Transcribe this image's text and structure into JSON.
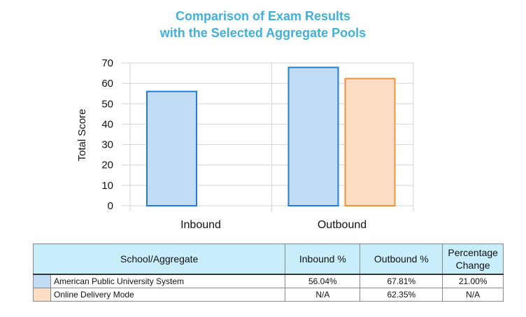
{
  "chart_data": {
    "type": "bar",
    "title_line1": "Comparison of Exam Results",
    "title_line2": "with the Selected Aggregate Pools",
    "ylabel": "Total Score",
    "xlabel": "",
    "ylim": [
      0,
      70
    ],
    "yticks": [
      0,
      10,
      20,
      30,
      40,
      50,
      60,
      70
    ],
    "grid": true,
    "categories": [
      "Inbound",
      "Outbound"
    ],
    "series": [
      {
        "name": "American Public University System",
        "values": [
          56.04,
          67.81
        ],
        "fill": "#c2dcf6",
        "stroke": "#1f7ed6"
      },
      {
        "name": "Online Delivery Mode",
        "values": [
          null,
          62.35
        ],
        "fill": "#fddcc4",
        "stroke": "#f0923e"
      }
    ]
  },
  "table": {
    "headers": {
      "school": "School/Aggregate",
      "inbound": "Inbound %",
      "outbound": "Outbound %",
      "change_line1": "Percentage",
      "change_line2": "Change"
    },
    "rows": [
      {
        "name": "American Public University System",
        "inbound": "56.04%",
        "outbound": "67.81%",
        "change": "21.00%",
        "swatch": "#c2dcf6"
      },
      {
        "name": "Online Delivery Mode",
        "inbound": "N/A",
        "outbound": "62.35%",
        "change": "N/A",
        "swatch": "#fddcc4"
      }
    ]
  }
}
